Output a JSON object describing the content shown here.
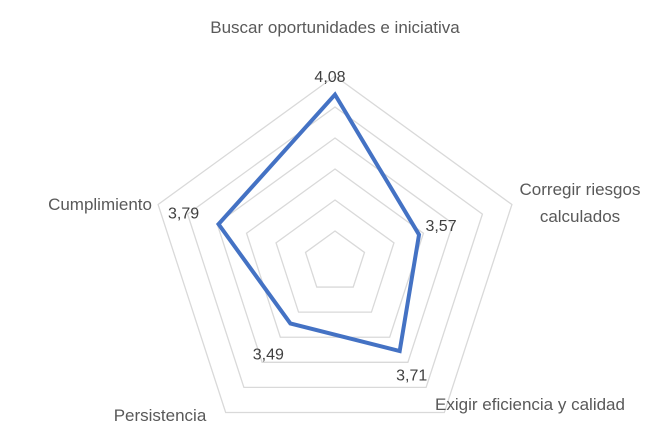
{
  "chart_data": {
    "type": "radar",
    "categories": [
      "Buscar oportunidades e iniciativa",
      "Corregir riesgos calculados",
      "Exigir eficiencia y calidad",
      "Persistencia",
      "Cumplimiento"
    ],
    "values": [
      4.08,
      3.57,
      3.71,
      3.49,
      3.79
    ],
    "value_labels": [
      "4,08",
      "3,57",
      "3,71",
      "3,49",
      "3,79"
    ],
    "color": "#4472c4",
    "rlim": [
      3.0,
      4.2
    ],
    "rticks": [
      3.2,
      3.4,
      3.6,
      3.8,
      4.0,
      4.2
    ],
    "grid": true
  }
}
